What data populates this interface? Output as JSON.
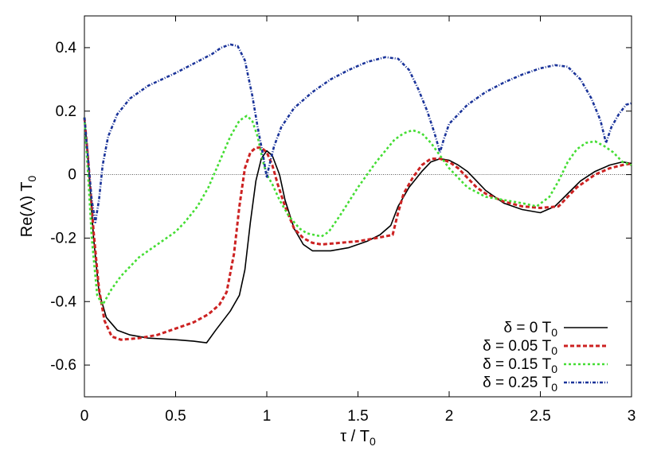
{
  "chart_data": {
    "type": "line",
    "xlabel": "τ / T",
    "xlabel_sub": "0",
    "ylabel": "Re(Λ) T",
    "ylabel_sub": "0",
    "xlim": [
      0,
      3
    ],
    "ylim": [
      -0.7,
      0.5
    ],
    "xticks": [
      0,
      0.5,
      1,
      1.5,
      2,
      2.5,
      3
    ],
    "xtick_labels": [
      "0",
      "0.5",
      "1",
      "1.5",
      "2",
      "2.5",
      "3"
    ],
    "yticks": [
      -0.6,
      -0.4,
      -0.2,
      0,
      0.2,
      0.4
    ],
    "ytick_labels": [
      "-0.6",
      "-0.4",
      "-0.2",
      "0",
      "0.2",
      "0.4"
    ],
    "zero_line": true,
    "grid": false,
    "legend_position": "bottom-right",
    "series": [
      {
        "name": "δ = 0 T",
        "name_sub": "0",
        "color": "#000000",
        "dash": "solid",
        "points": [
          [
            0,
            0.18
          ],
          [
            0.02,
            0.05
          ],
          [
            0.05,
            -0.2
          ],
          [
            0.08,
            -0.37
          ],
          [
            0.12,
            -0.45
          ],
          [
            0.18,
            -0.49
          ],
          [
            0.25,
            -0.505
          ],
          [
            0.35,
            -0.515
          ],
          [
            0.5,
            -0.52
          ],
          [
            0.6,
            -0.525
          ],
          [
            0.67,
            -0.53
          ],
          [
            0.72,
            -0.49
          ],
          [
            0.8,
            -0.43
          ],
          [
            0.85,
            -0.38
          ],
          [
            0.88,
            -0.3
          ],
          [
            0.91,
            -0.15
          ],
          [
            0.94,
            -0.02
          ],
          [
            0.97,
            0.05
          ],
          [
            1.0,
            0.075
          ],
          [
            1.03,
            0.06
          ],
          [
            1.07,
            0.0
          ],
          [
            1.1,
            -0.08
          ],
          [
            1.15,
            -0.17
          ],
          [
            1.2,
            -0.22
          ],
          [
            1.25,
            -0.24
          ],
          [
            1.35,
            -0.24
          ],
          [
            1.45,
            -0.23
          ],
          [
            1.55,
            -0.21
          ],
          [
            1.62,
            -0.19
          ],
          [
            1.68,
            -0.16
          ],
          [
            1.72,
            -0.1
          ],
          [
            1.78,
            -0.04
          ],
          [
            1.85,
            0.01
          ],
          [
            1.9,
            0.04
          ],
          [
            1.95,
            0.05
          ],
          [
            2.0,
            0.045
          ],
          [
            2.05,
            0.03
          ],
          [
            2.1,
            0.01
          ],
          [
            2.15,
            -0.02
          ],
          [
            2.2,
            -0.05
          ],
          [
            2.3,
            -0.09
          ],
          [
            2.4,
            -0.11
          ],
          [
            2.5,
            -0.12
          ],
          [
            2.58,
            -0.1
          ],
          [
            2.65,
            -0.06
          ],
          [
            2.72,
            -0.02
          ],
          [
            2.8,
            0.01
          ],
          [
            2.88,
            0.03
          ],
          [
            2.95,
            0.04
          ],
          [
            3.0,
            0.035
          ]
        ]
      },
      {
        "name": "δ = 0.05 T",
        "name_sub": "0",
        "color": "#cc2222",
        "dash": "5,3",
        "points": [
          [
            0,
            0.18
          ],
          [
            0.02,
            0.05
          ],
          [
            0.05,
            -0.18
          ],
          [
            0.08,
            -0.36
          ],
          [
            0.11,
            -0.46
          ],
          [
            0.15,
            -0.51
          ],
          [
            0.2,
            -0.52
          ],
          [
            0.3,
            -0.515
          ],
          [
            0.4,
            -0.505
          ],
          [
            0.5,
            -0.485
          ],
          [
            0.6,
            -0.465
          ],
          [
            0.68,
            -0.44
          ],
          [
            0.74,
            -0.41
          ],
          [
            0.78,
            -0.37
          ],
          [
            0.82,
            -0.25
          ],
          [
            0.85,
            -0.1
          ],
          [
            0.88,
            0.02
          ],
          [
            0.91,
            0.07
          ],
          [
            0.94,
            0.085
          ],
          [
            0.97,
            0.085
          ],
          [
            1.0,
            0.07
          ],
          [
            1.03,
            0.03
          ],
          [
            1.06,
            -0.03
          ],
          [
            1.1,
            -0.1
          ],
          [
            1.15,
            -0.17
          ],
          [
            1.2,
            -0.2
          ],
          [
            1.25,
            -0.215
          ],
          [
            1.3,
            -0.22
          ],
          [
            1.4,
            -0.215
          ],
          [
            1.5,
            -0.21
          ],
          [
            1.6,
            -0.2
          ],
          [
            1.69,
            -0.19
          ],
          [
            1.72,
            -0.12
          ],
          [
            1.75,
            -0.06
          ],
          [
            1.8,
            -0.01
          ],
          [
            1.85,
            0.03
          ],
          [
            1.9,
            0.05
          ],
          [
            1.95,
            0.05
          ],
          [
            2.0,
            0.04
          ],
          [
            2.05,
            0.02
          ],
          [
            2.1,
            -0.01
          ],
          [
            2.15,
            -0.04
          ],
          [
            2.2,
            -0.06
          ],
          [
            2.3,
            -0.085
          ],
          [
            2.4,
            -0.1
          ],
          [
            2.5,
            -0.105
          ],
          [
            2.6,
            -0.1
          ],
          [
            2.65,
            -0.07
          ],
          [
            2.7,
            -0.04
          ],
          [
            2.75,
            -0.02
          ],
          [
            2.8,
            0.0
          ],
          [
            2.88,
            0.02
          ],
          [
            2.95,
            0.03
          ],
          [
            3.0,
            0.035
          ]
        ]
      },
      {
        "name": "δ = 0.15 T",
        "name_sub": "0",
        "color": "#44dd33",
        "dash": "3,3",
        "points": [
          [
            0,
            0.18
          ],
          [
            0.02,
            0.0
          ],
          [
            0.04,
            -0.2
          ],
          [
            0.07,
            -0.38
          ],
          [
            0.1,
            -0.41
          ],
          [
            0.15,
            -0.36
          ],
          [
            0.2,
            -0.32
          ],
          [
            0.3,
            -0.26
          ],
          [
            0.4,
            -0.22
          ],
          [
            0.5,
            -0.18
          ],
          [
            0.55,
            -0.15
          ],
          [
            0.62,
            -0.1
          ],
          [
            0.68,
            -0.04
          ],
          [
            0.74,
            0.04
          ],
          [
            0.8,
            0.12
          ],
          [
            0.85,
            0.17
          ],
          [
            0.89,
            0.185
          ],
          [
            0.92,
            0.17
          ],
          [
            0.95,
            0.12
          ],
          [
            0.98,
            0.04
          ],
          [
            1.0,
            0.0
          ],
          [
            1.03,
            -0.03
          ],
          [
            1.07,
            -0.08
          ],
          [
            1.12,
            -0.13
          ],
          [
            1.18,
            -0.17
          ],
          [
            1.22,
            -0.185
          ],
          [
            1.26,
            -0.19
          ],
          [
            1.3,
            -0.195
          ],
          [
            1.34,
            -0.18
          ],
          [
            1.4,
            -0.13
          ],
          [
            1.5,
            -0.04
          ],
          [
            1.6,
            0.04
          ],
          [
            1.7,
            0.11
          ],
          [
            1.75,
            0.13
          ],
          [
            1.8,
            0.14
          ],
          [
            1.85,
            0.13
          ],
          [
            1.9,
            0.1
          ],
          [
            1.95,
            0.06
          ],
          [
            2.0,
            0.02
          ],
          [
            2.05,
            -0.01
          ],
          [
            2.1,
            -0.04
          ],
          [
            2.2,
            -0.07
          ],
          [
            2.3,
            -0.08
          ],
          [
            2.4,
            -0.09
          ],
          [
            2.48,
            -0.1
          ],
          [
            2.55,
            -0.07
          ],
          [
            2.6,
            -0.02
          ],
          [
            2.65,
            0.04
          ],
          [
            2.7,
            0.08
          ],
          [
            2.75,
            0.1
          ],
          [
            2.8,
            0.105
          ],
          [
            2.85,
            0.09
          ],
          [
            2.9,
            0.07
          ],
          [
            2.95,
            0.04
          ],
          [
            3.0,
            0.03
          ]
        ]
      },
      {
        "name": "δ = 0.25 T",
        "name_sub": "0",
        "color": "#1a3399",
        "dash": "4,2,1,2",
        "points": [
          [
            0,
            0.18
          ],
          [
            0.02,
            0.05
          ],
          [
            0.04,
            -0.08
          ],
          [
            0.06,
            -0.15
          ],
          [
            0.08,
            -0.08
          ],
          [
            0.1,
            0.03
          ],
          [
            0.13,
            0.12
          ],
          [
            0.18,
            0.19
          ],
          [
            0.25,
            0.24
          ],
          [
            0.35,
            0.28
          ],
          [
            0.5,
            0.32
          ],
          [
            0.6,
            0.35
          ],
          [
            0.7,
            0.38
          ],
          [
            0.75,
            0.4
          ],
          [
            0.8,
            0.41
          ],
          [
            0.84,
            0.405
          ],
          [
            0.88,
            0.36
          ],
          [
            0.92,
            0.25
          ],
          [
            0.95,
            0.15
          ],
          [
            0.98,
            0.06
          ],
          [
            1.0,
            -0.01
          ],
          [
            1.01,
            0.02
          ],
          [
            1.04,
            0.09
          ],
          [
            1.08,
            0.15
          ],
          [
            1.15,
            0.21
          ],
          [
            1.25,
            0.26
          ],
          [
            1.35,
            0.3
          ],
          [
            1.45,
            0.33
          ],
          [
            1.55,
            0.355
          ],
          [
            1.65,
            0.37
          ],
          [
            1.72,
            0.365
          ],
          [
            1.78,
            0.33
          ],
          [
            1.83,
            0.27
          ],
          [
            1.88,
            0.2
          ],
          [
            1.92,
            0.13
          ],
          [
            1.95,
            0.07
          ],
          [
            1.97,
            0.11
          ],
          [
            2.0,
            0.16
          ],
          [
            2.1,
            0.22
          ],
          [
            2.2,
            0.26
          ],
          [
            2.3,
            0.29
          ],
          [
            2.4,
            0.315
          ],
          [
            2.5,
            0.335
          ],
          [
            2.58,
            0.345
          ],
          [
            2.65,
            0.34
          ],
          [
            2.72,
            0.3
          ],
          [
            2.78,
            0.24
          ],
          [
            2.83,
            0.17
          ],
          [
            2.86,
            0.1
          ],
          [
            2.89,
            0.15
          ],
          [
            2.93,
            0.19
          ],
          [
            2.97,
            0.22
          ],
          [
            3.0,
            0.225
          ]
        ]
      }
    ]
  }
}
